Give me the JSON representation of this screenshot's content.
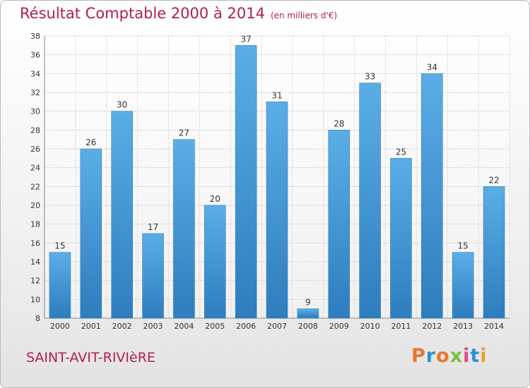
{
  "header": {
    "title": "Résultat Comptable 2000 à 2014",
    "subtitle": "(en milliers d'€)"
  },
  "footer": {
    "commune": "SAINT-AVIT-RIVIèRE",
    "logo": "Proxiti"
  },
  "colors": {
    "bar_top": "#5aaee6",
    "bar_bottom": "#2e7dbf",
    "title": "#b0204a"
  },
  "chart_data": {
    "type": "bar",
    "title": "Résultat Comptable 2000 à 2014",
    "subtitle": "(en milliers d'€)",
    "categories": [
      "2000",
      "2001",
      "2002",
      "2003",
      "2004",
      "2005",
      "2006",
      "2007",
      "2008",
      "2009",
      "2010",
      "2011",
      "2012",
      "2013",
      "2014"
    ],
    "values": [
      15,
      26,
      30,
      17,
      27,
      20,
      37,
      31,
      9,
      28,
      33,
      25,
      34,
      15,
      22
    ],
    "ylim": [
      8,
      38
    ],
    "yticks": [
      8,
      10,
      12,
      14,
      16,
      18,
      20,
      22,
      24,
      26,
      28,
      30,
      32,
      34,
      36,
      38
    ],
    "grid": true,
    "xlabel": "",
    "ylabel": ""
  }
}
